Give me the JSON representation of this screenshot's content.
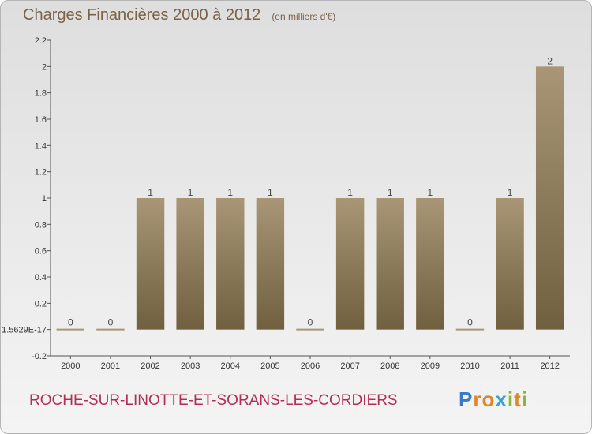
{
  "header": {
    "title": "Charges Financières 2000 à 2012",
    "subtitle": "(en milliers d'€)"
  },
  "footer": {
    "commune": "ROCHE-SUR-LINOTTE-ET-SORANS-LES-CORDIERS",
    "logo": [
      "P",
      "r",
      "o",
      "x",
      "i",
      "t",
      "i"
    ]
  },
  "colors": {
    "title": "#7a6345",
    "commune": "#b42e52",
    "bar_top": "#a89676",
    "bar_bottom": "#70603f",
    "logo": [
      "#3a78c8",
      "#e0852a",
      "#e0852a",
      "#3aa0d8",
      "#88b838",
      "#e0852a",
      "#88b838"
    ]
  },
  "chart_data": {
    "type": "bar",
    "categories": [
      "2000",
      "2001",
      "2002",
      "2003",
      "2004",
      "2005",
      "2006",
      "2007",
      "2008",
      "2009",
      "2010",
      "2011",
      "2012"
    ],
    "values": [
      0,
      0,
      1,
      1,
      1,
      1,
      0,
      1,
      1,
      1,
      0,
      1,
      2
    ],
    "data_labels": [
      "0",
      "0",
      "1",
      "1",
      "1",
      "1",
      "0",
      "1",
      "1",
      "1",
      "0",
      "1",
      "2"
    ],
    "yticks": [
      -0.2,
      0,
      0.2,
      0.4,
      0.6,
      0.8,
      1,
      1.2,
      1.4,
      1.6,
      1.8,
      2,
      2.2
    ],
    "ytick_labels": [
      "-0.2",
      "1.5629E-17",
      "0.2",
      "0.4",
      "0.6",
      "0.8",
      "1",
      "1.2",
      "1.4",
      "1.6",
      "1.8",
      "2",
      "2.2"
    ],
    "ylim": [
      -0.2,
      2.2
    ],
    "grid": false
  }
}
